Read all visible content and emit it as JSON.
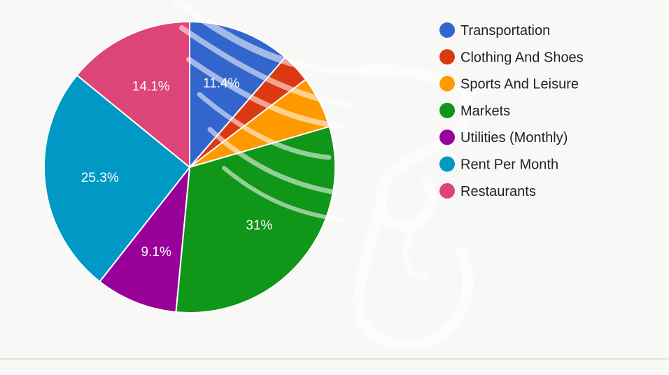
{
  "chart_data": {
    "type": "pie",
    "title": "",
    "slices": [
      {
        "label": "Transportation",
        "value": 11.4,
        "display": "11.4%",
        "color": "#3366cc"
      },
      {
        "label": "Clothing And Shoes",
        "value": 3.3,
        "display": "",
        "color": "#dc3912"
      },
      {
        "label": "Sports And Leisure",
        "value": 5.8,
        "display": "",
        "color": "#ff9900"
      },
      {
        "label": "Markets",
        "value": 31,
        "display": "31%",
        "color": "#109618"
      },
      {
        "label": "Utilities (Monthly)",
        "value": 9.1,
        "display": "9.1%",
        "color": "#990099"
      },
      {
        "label": "Rent Per Month",
        "value": 25.3,
        "display": "25.3%",
        "color": "#0099c6"
      },
      {
        "label": "Restaurants",
        "value": 14.1,
        "display": "14.1%",
        "color": "#dd4477"
      }
    ],
    "legend_position": "right",
    "start_angle_deg": 0,
    "direction": "clockwise"
  }
}
